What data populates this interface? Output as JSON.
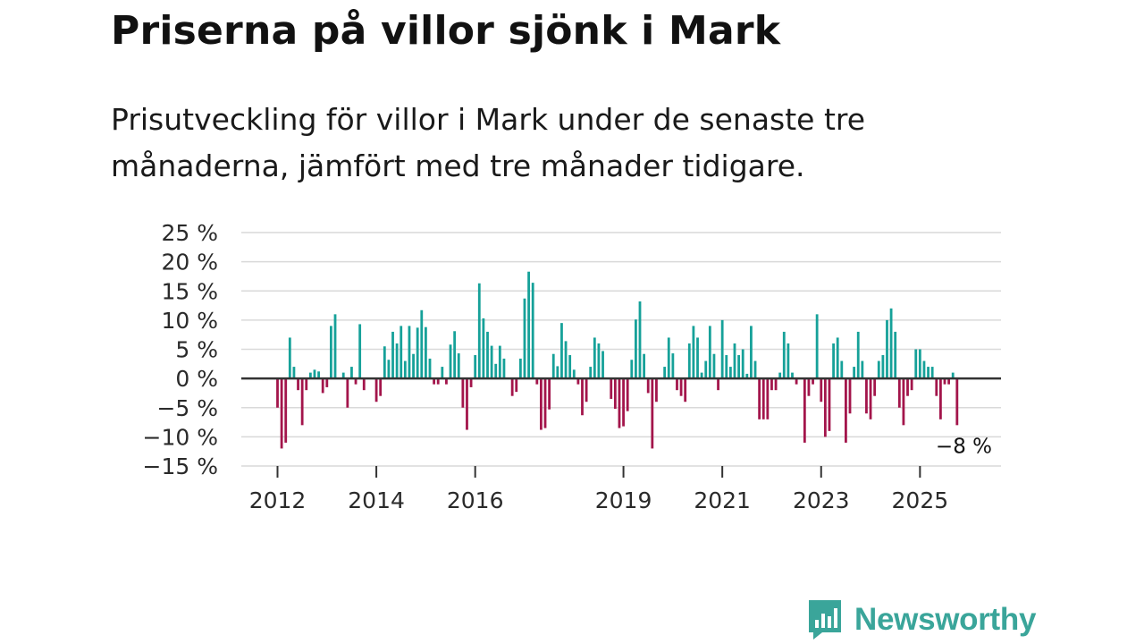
{
  "title": "Priserna på villor sjönk i Mark",
  "subtitle": "Prisutveckling för villor i Mark under de senaste tre månaderna, jämfört med tre månader tidigare.",
  "brand": {
    "name": "Newsworthy",
    "color": "#3aa59a",
    "icon": "bar-chart-speech-bubble-icon"
  },
  "colors": {
    "positive": "#16a199",
    "negative": "#a3154b",
    "grid": "#d9d9d9",
    "zero": "#333333"
  },
  "chart_data": {
    "type": "bar",
    "title": "Priserna på villor sjönk i Mark",
    "xlabel": "",
    "ylabel": "",
    "ylim": [
      -15,
      25
    ],
    "y_ticks": [
      25,
      20,
      15,
      10,
      5,
      0,
      -5,
      -10,
      -15
    ],
    "y_tick_labels": [
      "25 %",
      "20 %",
      "15 %",
      "10 %",
      "5 %",
      "0 %",
      "−5 %",
      "−10 %",
      "−15 %"
    ],
    "x_ticks": [
      {
        "label": "2012",
        "month_index": 0
      },
      {
        "label": "2014",
        "month_index": 24
      },
      {
        "label": "2016",
        "month_index": 48
      },
      {
        "label": "2019",
        "month_index": 84
      },
      {
        "label": "2021",
        "month_index": 108
      },
      {
        "label": "2023",
        "month_index": 132
      },
      {
        "label": "2025",
        "month_index": 156
      }
    ],
    "start": "2012-01",
    "unit": "%",
    "values": [
      -5,
      -12,
      -11,
      7,
      2,
      -2,
      -8,
      -2,
      1,
      1.5,
      1.2,
      -2.5,
      -1.5,
      9,
      11,
      0,
      1,
      -5,
      2,
      -1,
      9.3,
      -2,
      0,
      0,
      -4,
      -3,
      5.5,
      3.2,
      8,
      6,
      9,
      3,
      9,
      4.2,
      8.7,
      11.7,
      8.8,
      3.4,
      -1,
      -1,
      2,
      -1,
      5.8,
      8.1,
      4.3,
      -5,
      -8.8,
      -1.5,
      4,
      16.3,
      10.3,
      8,
      5.6,
      2.5,
      5.6,
      3.4,
      0,
      -3,
      -2.3,
      3.4,
      13.7,
      18.3,
      16.4,
      -1,
      -8.8,
      -8.5,
      -5.3,
      4.2,
      2.1,
      9.5,
      6.4,
      4,
      1.5,
      -1,
      -6.3,
      -4,
      2,
      7,
      6,
      4.7,
      0,
      -3.5,
      -5.2,
      -8.5,
      -8.2,
      -5.6,
      3.2,
      10.1,
      13.2,
      4.2,
      -2.5,
      -12,
      -4,
      0,
      2,
      7,
      4.3,
      -2,
      -3,
      -4,
      6,
      9,
      7,
      1,
      3,
      9,
      4.2,
      -2,
      10,
      4,
      2,
      6,
      4,
      5,
      0.8,
      9,
      3,
      -7,
      -7,
      -7,
      -2,
      -2,
      1,
      8,
      6,
      1,
      -1,
      0,
      -11,
      -3,
      -1,
      11,
      -4,
      -10,
      -9,
      6,
      7,
      3,
      -11,
      -6,
      2,
      8,
      3,
      -6,
      -7,
      -3,
      3,
      4,
      10,
      12,
      8,
      -5,
      -8,
      -3,
      -2,
      5,
      5,
      3,
      2,
      2,
      -3,
      -7,
      -1,
      -1,
      1,
      -8
    ],
    "last_label": "−8 %",
    "last_value": -8
  }
}
